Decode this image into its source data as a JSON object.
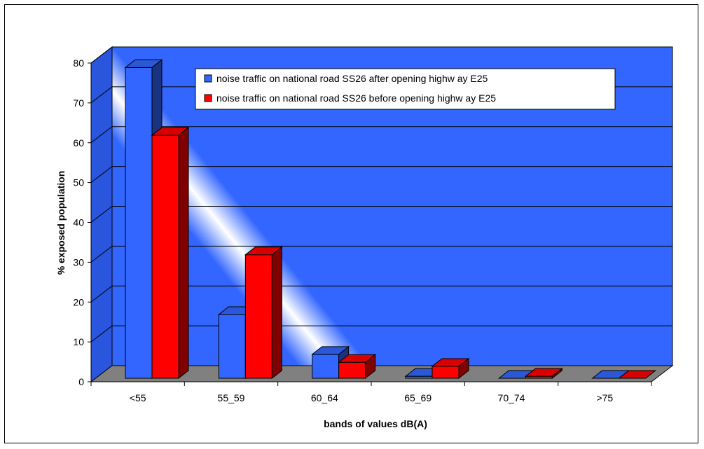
{
  "chart_data": {
    "type": "bar",
    "categories": [
      "<55",
      "55_59",
      "60_64",
      "65_69",
      "70_74",
      ">75"
    ],
    "series": [
      {
        "name": "noise traffic on national road SS26 after opening highw ay E25",
        "values": [
          78,
          16,
          6,
          0.5,
          0,
          0
        ],
        "color": "#3366ff"
      },
      {
        "name": "noise traffic on national road SS26 before opening highw ay E25",
        "values": [
          61,
          31,
          4,
          3,
          0.5,
          0
        ],
        "color": "#ff0000"
      }
    ],
    "xlabel": "bands of values dB(A)",
    "ylabel": "% exposed population",
    "ylim": [
      0,
      80
    ],
    "yticks": [
      0,
      10,
      20,
      30,
      40,
      50,
      60,
      70,
      80
    ],
    "grid": true,
    "legend_position": "top-right",
    "background_color": "#3366ff",
    "three_d": true
  }
}
